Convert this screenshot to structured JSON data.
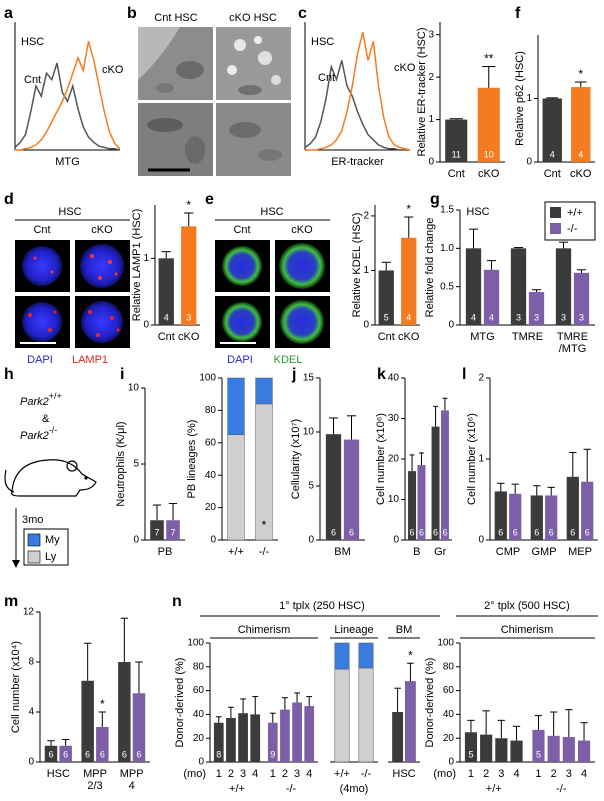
{
  "chart_data": [
    {
      "type": "line",
      "panel": "a",
      "title": "HSC",
      "xlabel": "MTG",
      "xlim": [
        0,
        20
      ],
      "ylim": [
        0,
        1
      ],
      "x": [
        0,
        1,
        2,
        3,
        4,
        5,
        6,
        7,
        8,
        9,
        10,
        11,
        12,
        13,
        14,
        15,
        16,
        17,
        18,
        19,
        20
      ],
      "series": [
        {
          "name": "Cnt",
          "color": "#555555",
          "values": [
            0.02,
            0.06,
            0.12,
            0.3,
            0.5,
            0.42,
            0.6,
            0.55,
            0.68,
            0.45,
            0.38,
            0.5,
            0.32,
            0.18,
            0.1,
            0.06,
            0.03,
            0.02,
            0.01,
            0.01,
            0
          ]
        },
        {
          "name": "cKO",
          "color": "#f47b20",
          "values": [
            0,
            0,
            0.01,
            0.02,
            0.04,
            0.08,
            0.14,
            0.22,
            0.3,
            0.38,
            0.48,
            0.6,
            0.72,
            0.62,
            0.85,
            0.7,
            0.5,
            0.3,
            0.14,
            0.05,
            0.01
          ]
        }
      ]
    },
    {
      "type": "line",
      "panel": "c",
      "title": "HSC",
      "xlabel": "ER-tracker",
      "xlim": [
        0,
        20
      ],
      "ylim": [
        0,
        1
      ],
      "x": [
        0,
        1,
        2,
        3,
        4,
        5,
        6,
        7,
        8,
        9,
        10,
        11,
        12,
        13,
        14,
        15,
        16,
        17,
        18,
        19,
        20
      ],
      "series": [
        {
          "name": "Cnt",
          "color": "#555555",
          "values": [
            0.02,
            0.05,
            0.1,
            0.22,
            0.4,
            0.65,
            0.55,
            0.7,
            0.5,
            0.42,
            0.3,
            0.2,
            0.12,
            0.08,
            0.04,
            0.02,
            0.01,
            0.01,
            0,
            0,
            0
          ]
        },
        {
          "name": "cKO",
          "color": "#f47b20",
          "values": [
            0,
            0,
            0,
            0.01,
            0.02,
            0.04,
            0.08,
            0.15,
            0.3,
            0.5,
            0.75,
            0.92,
            0.7,
            0.85,
            0.5,
            0.25,
            0.1,
            0.04,
            0.02,
            0.01,
            0
          ]
        }
      ]
    },
    {
      "type": "bar",
      "ylabel": "Relative ER-tracker (HSC)",
      "ylim": [
        0,
        3.3
      ],
      "yticks": [
        0,
        1,
        2,
        3
      ],
      "categories": [
        "Cnt",
        "cKO"
      ],
      "series": [
        {
          "colors": [
            "#3b3b3b",
            "#f47b20"
          ],
          "values": [
            1.0,
            1.75
          ],
          "errors": [
            0.02,
            0.5
          ],
          "n": [
            11,
            10
          ],
          "significance": [
            null,
            "**"
          ]
        }
      ]
    },
    {
      "type": "bar",
      "panel": "f",
      "ylabel": "Relative p62 (HSC)",
      "ylim": [
        0,
        2
      ],
      "yticks": [
        0,
        1
      ],
      "categories": [
        "Cnt",
        "cKO"
      ],
      "series": [
        {
          "colors": [
            "#3b3b3b",
            "#f47b20"
          ],
          "values": [
            1.0,
            1.18
          ],
          "errors": [
            0.01,
            0.08
          ],
          "n": [
            4,
            4
          ],
          "significance": [
            null,
            "*"
          ]
        }
      ]
    },
    {
      "type": "bar",
      "ylabel": "Relative LAMP1 (HSC)",
      "ylim": [
        0,
        1.8
      ],
      "yticks": [
        0,
        1
      ],
      "categories": [
        "Cnt",
        "cKO"
      ],
      "series": [
        {
          "colors": [
            "#3b3b3b",
            "#f47b20"
          ],
          "values": [
            1.0,
            1.48
          ],
          "errors": [
            0.1,
            0.2
          ],
          "n": [
            4,
            3
          ],
          "significance": [
            null,
            "*"
          ]
        }
      ]
    },
    {
      "type": "bar",
      "ylabel": "Relative KDEL (HSC)",
      "ylim": [
        0,
        2.2
      ],
      "yticks": [
        0,
        1,
        2
      ],
      "categories": [
        "Cnt",
        "cKO"
      ],
      "series": [
        {
          "colors": [
            "#3b3b3b",
            "#f47b20"
          ],
          "values": [
            1.0,
            1.6
          ],
          "errors": [
            0.15,
            0.38
          ],
          "n": [
            5,
            4
          ],
          "significance": [
            null,
            "*"
          ]
        }
      ]
    },
    {
      "type": "bar",
      "panel": "g",
      "title": "HSC",
      "ylabel": "Relative fold change",
      "legend": "top-right",
      "ylim": [
        0,
        1.5
      ],
      "yticks": [
        0,
        0.5,
        {
          "value": 1,
          "label": "1.0"
        },
        1.5
      ],
      "categories": [
        "MTG",
        "TMRE",
        "TMRE\n/MTG"
      ],
      "series": [
        {
          "name": "+/+",
          "color": "#3b3b3b",
          "values": [
            1.0,
            1.0,
            1.0
          ],
          "errors": [
            0.25,
            0.01,
            0.08
          ],
          "n": [
            4,
            3,
            3
          ]
        },
        {
          "name": "-/-",
          "color": "#7d5fa8",
          "values": [
            0.72,
            0.43,
            0.68
          ],
          "errors": [
            0.12,
            0.03,
            0.04
          ],
          "n": [
            4,
            3,
            3
          ]
        }
      ]
    },
    {
      "type": "bar",
      "panel": "i",
      "ylabel": "Neutrophils (K/μl)",
      "ylim": [
        0,
        10
      ],
      "yticks": [
        0,
        5,
        10
      ],
      "categories": [
        "PB"
      ],
      "series": [
        {
          "color": "#3b3b3b",
          "values": [
            1.3
          ],
          "errors": [
            1.0
          ],
          "n": [
            7
          ]
        },
        {
          "color": "#7d5fa8",
          "values": [
            1.3
          ],
          "errors": [
            1.1
          ],
          "n": [
            7
          ]
        }
      ]
    },
    {
      "type": "stacked-bar",
      "ylabel": "PB lineages (%)",
      "ylim": [
        0,
        100
      ],
      "yticks": [
        0,
        20,
        40,
        60,
        80,
        100
      ],
      "categories": [
        "+/+",
        "-/-"
      ],
      "series": [
        {
          "name": "Ly",
          "color": "#cfcfcf",
          "values": [
            65,
            84
          ],
          "significance": [
            null,
            "*"
          ]
        },
        {
          "name": "My",
          "color": "#3a7be0",
          "values": [
            35,
            16
          ]
        }
      ]
    },
    {
      "type": "bar",
      "panel": "j",
      "ylabel": "Cellularity (x10⁷)",
      "ylim": [
        0,
        15
      ],
      "yticks": [
        0,
        5,
        10,
        15
      ],
      "categories": [
        "BM"
      ],
      "series": [
        {
          "color": "#3b3b3b",
          "values": [
            9.8
          ],
          "errors": [
            1.5
          ],
          "n": [
            6
          ]
        },
        {
          "color": "#7d5fa8",
          "values": [
            9.3
          ],
          "errors": [
            2.2
          ],
          "n": [
            6
          ]
        }
      ]
    },
    {
      "type": "bar",
      "panel": "k",
      "ylabel": "Cell number (x10⁶)",
      "ylim": [
        0,
        40
      ],
      "yticks": [
        0,
        10,
        20,
        30,
        40
      ],
      "categories": [
        "B",
        "Gr"
      ],
      "series": [
        {
          "color": "#3b3b3b",
          "values": [
            17,
            28
          ],
          "errors": [
            4,
            5
          ],
          "n": [
            6,
            6
          ]
        },
        {
          "color": "#7d5fa8",
          "values": [
            18.5,
            32
          ],
          "errors": [
            3,
            3
          ],
          "n": [
            6,
            6
          ]
        }
      ]
    },
    {
      "type": "bar",
      "panel": "l",
      "ylabel": "Cell number (x10⁶)",
      "ylim": [
        0,
        2
      ],
      "yticks": [
        0,
        1,
        2
      ],
      "categories": [
        "CMP",
        "GMP",
        "MEP"
      ],
      "series": [
        {
          "color": "#3b3b3b",
          "values": [
            0.6,
            0.55,
            0.78
          ],
          "errors": [
            0.1,
            0.12,
            0.3
          ],
          "n": [
            6,
            6,
            6
          ]
        },
        {
          "color": "#7d5fa8",
          "values": [
            0.57,
            0.55,
            0.72
          ],
          "errors": [
            0.12,
            0.1,
            0.4
          ],
          "n": [
            6,
            6,
            6
          ]
        }
      ]
    },
    {
      "type": "bar",
      "panel": "m",
      "ylabel": "Cell number (x10⁴)",
      "ylim": [
        0,
        12
      ],
      "yticks": [
        0,
        4,
        8,
        12
      ],
      "categories": [
        "HSC",
        "MPP\n2/3",
        "MPP\n4"
      ],
      "series": [
        {
          "color": "#3b3b3b",
          "values": [
            1.3,
            6.5,
            8.0
          ],
          "errors": [
            0.4,
            3.0,
            3.5
          ],
          "n": [
            6,
            6,
            6
          ]
        },
        {
          "color": "#7d5fa8",
          "values": [
            1.3,
            2.8,
            5.5
          ],
          "errors": [
            0.5,
            1.2,
            2.5
          ],
          "n": [
            6,
            6,
            6
          ],
          "significance": [
            null,
            "*",
            null
          ]
        }
      ]
    },
    {
      "type": "bar",
      "title": "Chimerism",
      "ylabel": "Donor-derived (%)",
      "xlabel": "(mo)",
      "ylim": [
        0,
        100
      ],
      "yticks": [
        0,
        20,
        40,
        60,
        80,
        100
      ],
      "groups": [
        {
          "label": "+/+",
          "color": "#3b3b3b",
          "categories": [
            "1",
            "2",
            "3",
            "4"
          ],
          "values": [
            33,
            37,
            41,
            40
          ],
          "errors": [
            5,
            9,
            12,
            15
          ],
          "n": [
            8,
            null,
            null,
            null
          ]
        },
        {
          "label": "-/-",
          "color": "#7d5fa8",
          "categories": [
            "1",
            "2",
            "3",
            "4"
          ],
          "values": [
            33,
            44,
            50,
            47
          ],
          "errors": [
            8,
            10,
            8,
            8
          ],
          "n": [
            9,
            null,
            null,
            null
          ]
        }
      ]
    },
    {
      "type": "stacked-bar",
      "title": "Lineage",
      "xlabel": "(4mo)",
      "ylim": [
        0,
        100
      ],
      "categories": [
        "+/+",
        "-/-"
      ],
      "series": [
        {
          "name": "Ly",
          "color": "#cfcfcf",
          "values": [
            78,
            79
          ]
        },
        {
          "name": "My",
          "color": "#3a7be0",
          "values": [
            22,
            21
          ]
        }
      ]
    },
    {
      "type": "bar",
      "title": "BM",
      "ylim": [
        0,
        100
      ],
      "categories": [
        "HSC"
      ],
      "series": [
        {
          "color": "#3b3b3b",
          "values": [
            42
          ],
          "errors": [
            20
          ]
        },
        {
          "color": "#7d5fa8",
          "values": [
            68
          ],
          "errors": [
            15
          ],
          "significance": [
            "*"
          ]
        }
      ]
    },
    {
      "type": "bar",
      "title": "Chimerism",
      "ylabel": "Donor-derived (%)",
      "xlabel": "(mo)",
      "ylim": [
        0,
        100
      ],
      "yticks": [
        0,
        20,
        40,
        60,
        80,
        100
      ],
      "groups": [
        {
          "label": "+/+",
          "color": "#3b3b3b",
          "categories": [
            "1",
            "2",
            "3",
            "4"
          ],
          "values": [
            25,
            23,
            20,
            18
          ],
          "errors": [
            10,
            20,
            15,
            12
          ],
          "n": [
            5,
            null,
            null,
            null
          ]
        },
        {
          "label": "-/-",
          "color": "#7d5fa8",
          "categories": [
            "1",
            "2",
            "3",
            "4"
          ],
          "values": [
            27,
            22,
            21,
            18
          ],
          "errors": [
            12,
            20,
            23,
            15
          ],
          "n": [
            5,
            null,
            null,
            null
          ]
        }
      ]
    }
  ],
  "figure": {
    "b": {
      "letter": "b",
      "columns": [
        "Cnt HSC",
        "cKO HSC"
      ]
    },
    "d": {
      "letter": "d",
      "title": "HSC",
      "columns": [
        "Cnt",
        "cKO"
      ],
      "stains": [
        "DAPI",
        "LAMP1"
      ]
    },
    "e": {
      "letter": "e",
      "title": "HSC",
      "columns": [
        "Cnt",
        "cKO"
      ],
      "stains": [
        "DAPI",
        "KDEL"
      ]
    },
    "h": {
      "letter": "h",
      "gene": "Park2",
      "wildtype": "+/+",
      "joiner": "&",
      "knockout": "-/-",
      "time": "3mo"
    },
    "n": {
      "letter": "n",
      "primary": "1° tplx (250 HSC)",
      "secondary": "2° tplx (500 HSC)"
    }
  }
}
